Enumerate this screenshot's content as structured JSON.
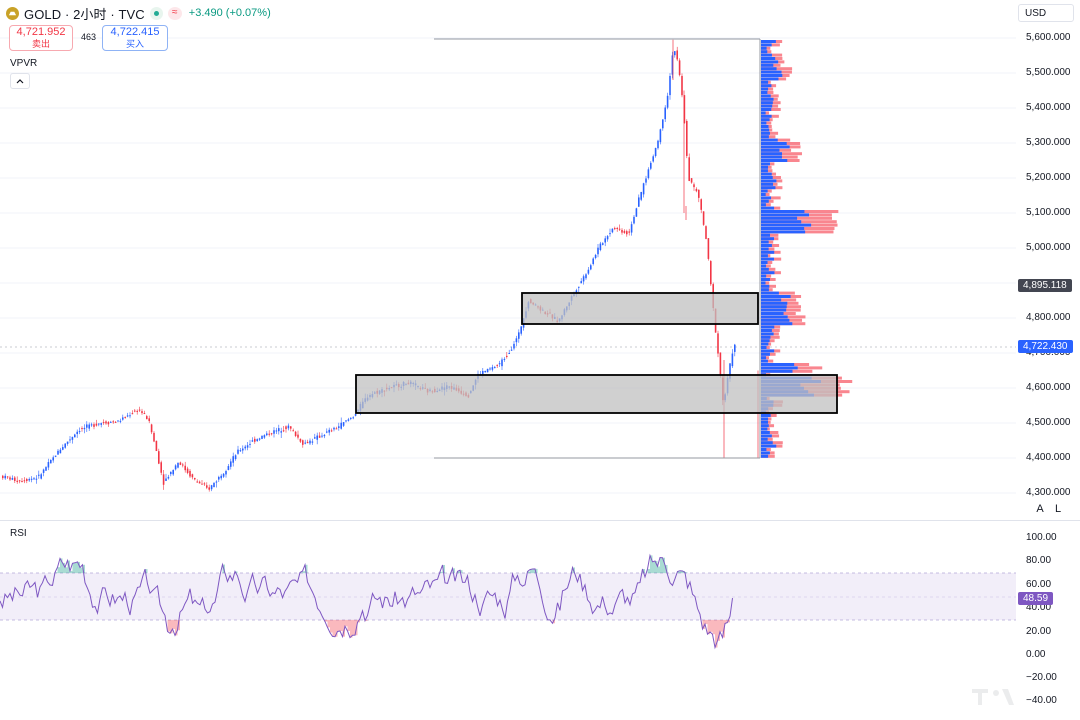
{
  "header": {
    "title": "GOLD · 2小时 · TVC",
    "change": "+3.490 (+0.07%)",
    "wave_symbol": "≈"
  },
  "trade": {
    "sell_price": "4,721.952",
    "sell_label": "卖出",
    "spread": "463",
    "buy_price": "4,722.415",
    "buy_label": "买入"
  },
  "indicators": {
    "vpvr_label": "VPVR",
    "rsi_label": "RSI"
  },
  "currency": "USD",
  "scale_buttons": {
    "auto": "A",
    "log": "L"
  },
  "price_axis": {
    "ticks": [
      "5,600.000",
      "5,500.000",
      "5,400.000",
      "5,300.000",
      "5,200.000",
      "5,100.000",
      "5,000.000",
      "4,900.000",
      "4,800.000",
      "4,700.000",
      "4,600.000",
      "4,500.000",
      "4,400.000",
      "4,300.000"
    ],
    "tag_high": "4,895.118",
    "tag_last": "4,722.430"
  },
  "rsi_axis": {
    "ticks": [
      "100.00",
      "80.00",
      "60.00",
      "40.00",
      "20.00",
      "0.00",
      "−20.00",
      "−40.00"
    ],
    "value": "48.59"
  },
  "colors": {
    "up": "#089981",
    "down": "#f23645",
    "candle_blue": "#2962ff",
    "vp_up": "#2962ff",
    "vp_down": "#f7525f",
    "rsi_line": "#7e57c2",
    "rsi_band": "#ede7f6",
    "box_fill": "#cfcfcf"
  }
}
